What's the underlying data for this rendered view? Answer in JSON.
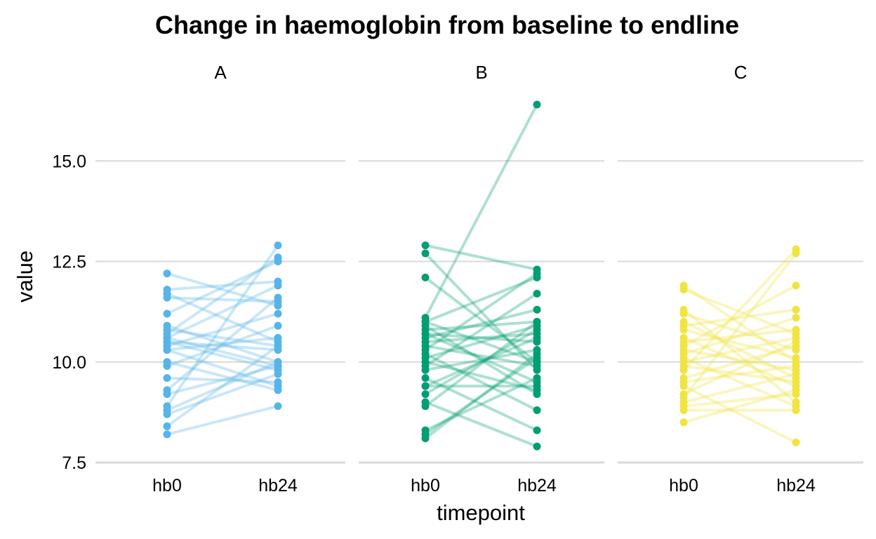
{
  "chart_data": {
    "type": "line",
    "title": "Change in haemoglobin from baseline to endline",
    "xlabel": "timepoint",
    "ylabel": "value",
    "x_categories": [
      "hb0",
      "hb24"
    ],
    "ylim": [
      7.5,
      16.6
    ],
    "yticks": [
      "7.5",
      "10.0",
      "12.5",
      "15.0"
    ],
    "ytick_values": [
      7.5,
      10.0,
      12.5,
      15.0
    ],
    "grid": "horizontal major",
    "legend": "none",
    "panels": [
      {
        "label": "A",
        "color": "#56B4E9",
        "pairs": [
          [
            12.2,
            11.4
          ],
          [
            11.8,
            12.0
          ],
          [
            11.7,
            10.5
          ],
          [
            11.6,
            11.5
          ],
          [
            11.2,
            12.5
          ],
          [
            10.9,
            10.0
          ],
          [
            10.8,
            10.4
          ],
          [
            10.7,
            12.6
          ],
          [
            10.6,
            9.9
          ],
          [
            10.6,
            11.9
          ],
          [
            10.5,
            10.3
          ],
          [
            10.5,
            9.8
          ],
          [
            10.4,
            11.2
          ],
          [
            10.3,
            9.4
          ],
          [
            10.3,
            10.6
          ],
          [
            10.0,
            9.3
          ],
          [
            9.9,
            10.9
          ],
          [
            9.6,
            9.5
          ],
          [
            9.3,
            11.6
          ],
          [
            9.2,
            9.9
          ],
          [
            8.9,
            12.9
          ],
          [
            8.8,
            10.0
          ],
          [
            8.7,
            9.7
          ],
          [
            8.4,
            10.4
          ],
          [
            8.2,
            8.9
          ]
        ]
      },
      {
        "label": "B",
        "color": "#009E73",
        "pairs": [
          [
            12.9,
            12.3
          ],
          [
            12.7,
            9.8
          ],
          [
            12.1,
            10.0
          ],
          [
            11.1,
            16.4
          ],
          [
            11.0,
            12.1
          ],
          [
            11.0,
            10.0
          ],
          [
            10.9,
            9.2
          ],
          [
            10.8,
            11.0
          ],
          [
            10.7,
            10.5
          ],
          [
            10.7,
            9.5
          ],
          [
            10.6,
            11.3
          ],
          [
            10.5,
            10.7
          ],
          [
            10.4,
            9.9
          ],
          [
            10.3,
            12.2
          ],
          [
            10.2,
            8.8
          ],
          [
            10.1,
            10.9
          ],
          [
            10.0,
            9.3
          ],
          [
            9.9,
            11.7
          ],
          [
            9.8,
            10.3
          ],
          [
            9.6,
            8.3
          ],
          [
            9.4,
            9.4
          ],
          [
            9.4,
            10.6
          ],
          [
            9.2,
            10.8
          ],
          [
            9.0,
            7.9
          ],
          [
            8.9,
            11.0
          ],
          [
            8.3,
            9.6
          ],
          [
            8.2,
            10.1
          ],
          [
            8.1,
            10.2
          ]
        ]
      },
      {
        "label": "C",
        "color": "#F0E442",
        "pairs": [
          [
            11.9,
            10.0
          ],
          [
            11.8,
            10.7
          ],
          [
            11.3,
            9.0
          ],
          [
            11.2,
            10.3
          ],
          [
            11.0,
            9.6
          ],
          [
            10.9,
            11.3
          ],
          [
            10.8,
            10.1
          ],
          [
            10.6,
            9.4
          ],
          [
            10.5,
            10.8
          ],
          [
            10.4,
            11.9
          ],
          [
            10.3,
            9.8
          ],
          [
            10.2,
            11.1
          ],
          [
            10.1,
            8.9
          ],
          [
            10.0,
            10.6
          ],
          [
            9.9,
            9.5
          ],
          [
            9.8,
            12.8
          ],
          [
            9.6,
            10.4
          ],
          [
            9.5,
            9.9
          ],
          [
            9.4,
            8.0
          ],
          [
            9.2,
            10.5
          ],
          [
            9.1,
            12.7
          ],
          [
            9.0,
            9.7
          ],
          [
            8.9,
            9.2
          ],
          [
            8.8,
            8.8
          ],
          [
            8.5,
            9.3
          ]
        ]
      }
    ]
  }
}
